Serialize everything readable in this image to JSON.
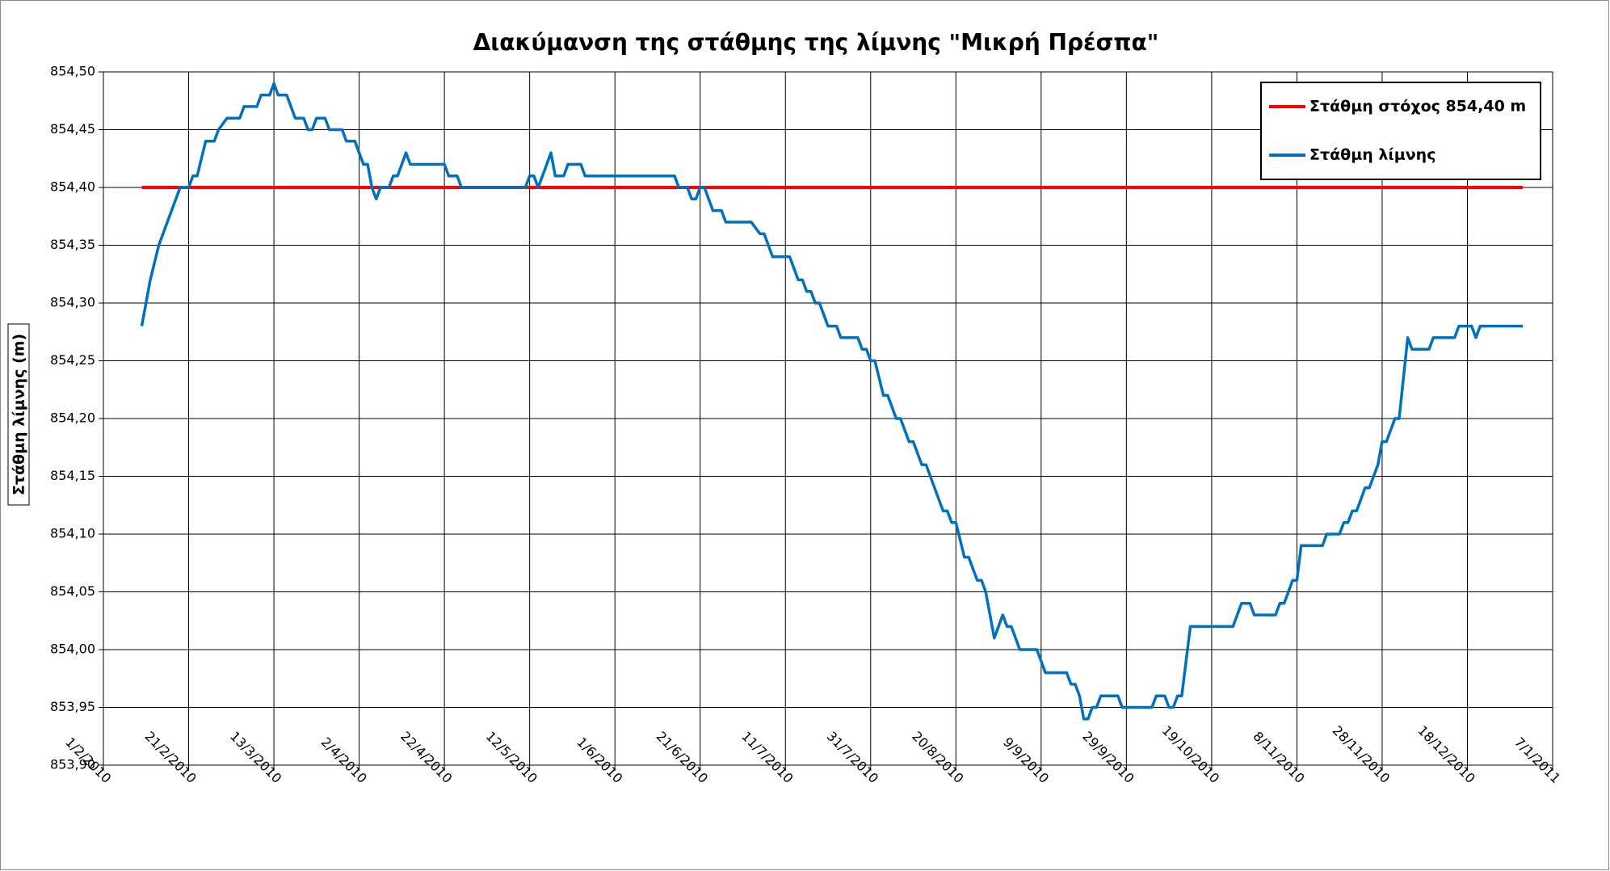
{
  "chart_data": {
    "type": "line",
    "title": "Διακύμανση της στάθμης της λίμνης \"Μικρή Πρέσπα\"",
    "y_label": "Στάθμη λίμνης (m)",
    "xlim": [
      "1/2/2010",
      "7/1/2011"
    ],
    "xticks": [
      "1/2/2010",
      "21/2/2010",
      "13/3/2010",
      "2/4/2010",
      "22/4/2010",
      "12/5/2010",
      "1/6/2010",
      "21/6/2010",
      "11/7/2010",
      "31/7/2010",
      "20/8/2010",
      "9/9/2010",
      "29/9/2010",
      "19/10/2010",
      "8/11/2010",
      "28/11/2010",
      "18/12/2010",
      "7/1/2011"
    ],
    "ylim": [
      853.9,
      854.5
    ],
    "yticks": [
      {
        "value": 853.9,
        "label": "853,90"
      },
      {
        "value": 853.95,
        "label": "853,95"
      },
      {
        "value": 854.0,
        "label": "854,00"
      },
      {
        "value": 854.05,
        "label": "854,05"
      },
      {
        "value": 854.1,
        "label": "854,10"
      },
      {
        "value": 854.15,
        "label": "854,15"
      },
      {
        "value": 854.2,
        "label": "854,20"
      },
      {
        "value": 854.25,
        "label": "854,25"
      },
      {
        "value": 854.3,
        "label": "854,30"
      },
      {
        "value": 854.35,
        "label": "854,35"
      },
      {
        "value": 854.4,
        "label": "854,40"
      },
      {
        "value": 854.45,
        "label": "854,45"
      },
      {
        "value": 854.5,
        "label": "854,50"
      }
    ],
    "grid": true,
    "legend": "top-right",
    "series": [
      {
        "name": "Στάθμη στόχος 854,40 m",
        "color": "#ff0000",
        "x": [
          "10/2/2010",
          "31/12/2010"
        ],
        "values": [
          854.4,
          854.4
        ]
      },
      {
        "name": "Στάθμη λίμνης",
        "color": "#0070c0",
        "x": [
          "10/2/2010",
          "12/2/2010",
          "14/2/2010",
          "16/2/2010",
          "18/2/2010",
          "19/2/2010",
          "21/2/2010",
          "22/2/2010",
          "23/2/2010",
          "25/2/2010",
          "27/2/2010",
          "28/2/2010",
          "2/3/2010",
          "5/3/2010",
          "6/3/2010",
          "9/3/2010",
          "10/3/2010",
          "12/3/2010",
          "13/3/2010",
          "14/3/2010",
          "16/3/2010",
          "18/3/2010",
          "20/3/2010",
          "21/3/2010",
          "22/3/2010",
          "23/3/2010",
          "25/3/2010",
          "26/3/2010",
          "29/3/2010",
          "30/3/2010",
          "1/4/2010",
          "2/4/2010",
          "3/4/2010",
          "4/4/2010",
          "5/4/2010",
          "6/4/2010",
          "7/4/2010",
          "9/4/2010",
          "10/4/2010",
          "11/4/2010",
          "13/4/2010",
          "14/4/2010",
          "22/4/2010",
          "23/4/2010",
          "25/4/2010",
          "26/4/2010",
          "11/5/2010",
          "12/5/2010",
          "13/5/2010",
          "14/5/2010",
          "16/5/2010",
          "17/5/2010",
          "18/5/2010",
          "20/5/2010",
          "21/5/2010",
          "24/5/2010",
          "25/5/2010",
          "15/6/2010",
          "16/6/2010",
          "18/6/2010",
          "19/6/2010",
          "20/6/2010",
          "21/6/2010",
          "22/6/2010",
          "24/6/2010",
          "26/6/2010",
          "27/6/2010",
          "3/7/2010",
          "5/7/2010",
          "6/7/2010",
          "8/7/2010",
          "12/7/2010",
          "13/7/2010",
          "14/7/2010",
          "15/7/2010",
          "16/7/2010",
          "17/7/2010",
          "18/7/2010",
          "19/7/2010",
          "21/7/2010",
          "23/7/2010",
          "24/7/2010",
          "28/7/2010",
          "29/7/2010",
          "30/7/2010",
          "31/7/2010",
          "1/8/2010",
          "3/8/2010",
          "4/8/2010",
          "6/8/2010",
          "7/8/2010",
          "9/8/2010",
          "10/8/2010",
          "12/8/2010",
          "13/8/2010",
          "15/8/2010",
          "17/8/2010",
          "18/8/2010",
          "19/8/2010",
          "20/8/2010",
          "22/8/2010",
          "23/8/2010",
          "25/8/2010",
          "26/8/2010",
          "27/8/2010",
          "29/8/2010",
          "31/8/2010",
          "1/9/2010",
          "2/9/2010",
          "4/9/2010",
          "8/9/2010",
          "9/9/2010",
          "10/9/2010",
          "15/9/2010",
          "16/9/2010",
          "17/9/2010",
          "18/9/2010",
          "19/9/2010",
          "20/9/2010",
          "21/9/2010",
          "22/9/2010",
          "23/9/2010",
          "27/9/2010",
          "28/9/2010",
          "5/10/2010",
          "6/10/2010",
          "8/10/2010",
          "9/10/2010",
          "10/10/2010",
          "11/10/2010",
          "12/10/2010",
          "13/10/2010",
          "14/10/2010",
          "24/10/2010",
          "26/10/2010",
          "28/10/2010",
          "29/10/2010",
          "3/11/2010",
          "4/11/2010",
          "5/11/2010",
          "7/11/2010",
          "8/11/2010",
          "9/11/2010",
          "14/11/2010",
          "15/11/2010",
          "18/11/2010",
          "19/11/2010",
          "20/11/2010",
          "21/11/2010",
          "22/11/2010",
          "23/11/2010",
          "24/11/2010",
          "25/11/2010",
          "27/11/2010",
          "28/11/2010",
          "29/11/2010",
          "30/11/2010",
          "1/12/2010",
          "2/12/2010",
          "4/12/2010",
          "5/12/2010",
          "9/12/2010",
          "10/12/2010",
          "15/12/2010",
          "16/12/2010",
          "19/12/2010",
          "20/12/2010",
          "21/12/2010",
          "31/12/2010"
        ],
        "values": [
          854.28,
          854.32,
          854.35,
          854.37,
          854.39,
          854.4,
          854.4,
          854.41,
          854.41,
          854.44,
          854.44,
          854.45,
          854.46,
          854.46,
          854.47,
          854.47,
          854.48,
          854.48,
          854.49,
          854.48,
          854.48,
          854.46,
          854.46,
          854.45,
          854.45,
          854.46,
          854.46,
          854.45,
          854.45,
          854.44,
          854.44,
          854.43,
          854.42,
          854.42,
          854.4,
          854.39,
          854.4,
          854.4,
          854.41,
          854.41,
          854.43,
          854.42,
          854.42,
          854.41,
          854.41,
          854.4,
          854.4,
          854.41,
          854.41,
          854.4,
          854.42,
          854.43,
          854.41,
          854.41,
          854.42,
          854.42,
          854.41,
          854.41,
          854.4,
          854.4,
          854.39,
          854.39,
          854.4,
          854.4,
          854.38,
          854.38,
          854.37,
          854.37,
          854.36,
          854.36,
          854.34,
          854.34,
          854.33,
          854.32,
          854.32,
          854.31,
          854.31,
          854.3,
          854.3,
          854.28,
          854.28,
          854.27,
          854.27,
          854.26,
          854.26,
          854.25,
          854.25,
          854.22,
          854.22,
          854.2,
          854.2,
          854.18,
          854.18,
          854.16,
          854.16,
          854.14,
          854.12,
          854.12,
          854.11,
          854.11,
          854.08,
          854.08,
          854.06,
          854.06,
          854.05,
          854.01,
          854.03,
          854.02,
          854.02,
          854.0,
          854.0,
          853.99,
          853.98,
          853.98,
          853.97,
          853.97,
          853.96,
          853.94,
          853.94,
          853.95,
          853.95,
          853.96,
          853.96,
          853.95,
          853.95,
          853.96,
          853.96,
          853.95,
          853.95,
          853.96,
          853.96,
          853.99,
          854.02,
          854.02,
          854.04,
          854.04,
          854.03,
          854.03,
          854.04,
          854.04,
          854.06,
          854.06,
          854.09,
          854.09,
          854.1,
          854.1,
          854.11,
          854.11,
          854.12,
          854.12,
          854.13,
          854.14,
          854.14,
          854.16,
          854.18,
          854.18,
          854.19,
          854.2,
          854.2,
          854.27,
          854.26,
          854.26,
          854.27,
          854.27,
          854.28,
          854.28,
          854.27,
          854.28,
          854.28
        ]
      }
    ]
  }
}
